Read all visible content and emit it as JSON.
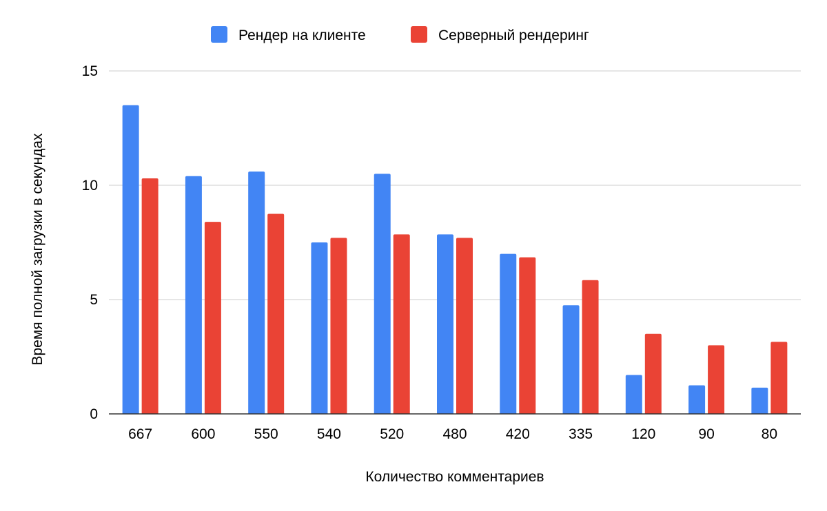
{
  "chart_data": {
    "type": "bar",
    "title": "",
    "xlabel": "Количество комментариев",
    "ylabel": "Время полной загрузки в секундах",
    "categories": [
      "667",
      "600",
      "550",
      "540",
      "520",
      "480",
      "420",
      "335",
      "120",
      "90",
      "80"
    ],
    "series": [
      {
        "name": "Рендер на клиенте",
        "color": "#4285f4",
        "values": [
          13.5,
          10.4,
          10.6,
          7.5,
          10.5,
          7.85,
          7.0,
          4.75,
          1.7,
          1.25,
          1.15
        ]
      },
      {
        "name": "Серверный рендеринг",
        "color": "#ea4335",
        "values": [
          10.3,
          8.4,
          8.75,
          7.7,
          7.85,
          7.7,
          6.85,
          5.85,
          3.5,
          3.0,
          3.15
        ]
      }
    ],
    "ylim": [
      0,
      15
    ],
    "yticks": [
      0,
      5,
      10,
      15
    ],
    "grid": true,
    "legend_position": "top-center"
  }
}
